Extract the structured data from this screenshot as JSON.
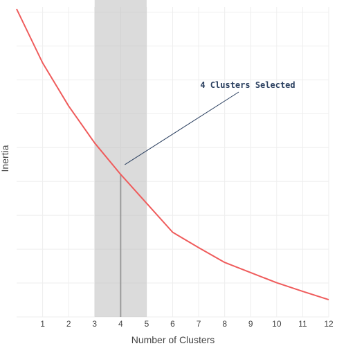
{
  "chart_data": {
    "type": "line",
    "title": "",
    "xlabel": "Number of Clusters",
    "ylabel": "Inertia",
    "x_ticks": [
      "1",
      "2",
      "3",
      "4",
      "5",
      "6",
      "7",
      "8",
      "9",
      "10",
      "11",
      "12"
    ],
    "xlim": [
      0,
      12
    ],
    "ylim": [
      0,
      100
    ],
    "y_tick_labels_shown": false,
    "grid": true,
    "series": [
      {
        "x": [
          0,
          1,
          2,
          3,
          4,
          5,
          6,
          7,
          8,
          9,
          10,
          11,
          12
        ],
        "y": [
          100,
          82.5,
          68.5,
          56.5,
          46.3,
          36.9,
          27.5,
          22.5,
          17.7,
          14.4,
          11.1,
          8.3,
          5.6
        ]
      }
    ],
    "highlight_band": {
      "x0": 3,
      "x1": 5
    },
    "selected_x": 4,
    "annotation": {
      "text": "4 Clusters Selected",
      "x": 4,
      "y": 46.3
    },
    "colors": {
      "line": "#ef5b5b",
      "band": "#bdbdbd",
      "grid": "#eeeeee",
      "annotation": "#2a3f5f",
      "selected_line": "#9a9a9a"
    }
  }
}
